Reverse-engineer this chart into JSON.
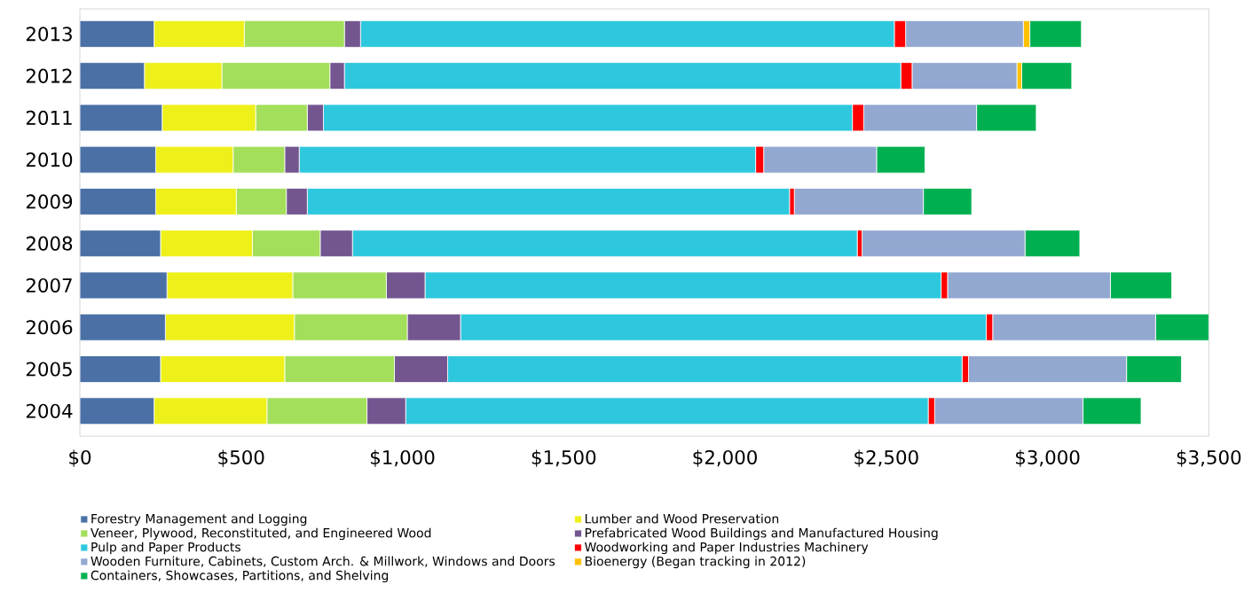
{
  "chart_data": {
    "type": "bar",
    "orientation": "horizontal",
    "stacked": true,
    "categories": [
      "2013",
      "2012",
      "2011",
      "2010",
      "2009",
      "2008",
      "2007",
      "2006",
      "2005",
      "2004"
    ],
    "series": [
      {
        "name": "Forestry Management and Logging",
        "color": "#4a70a6",
        "values": [
          230,
          200,
          255,
          235,
          235,
          250,
          270,
          265,
          250,
          230
        ]
      },
      {
        "name": "Lumber and Wood Preservation",
        "color": "#eef01a",
        "values": [
          280,
          240,
          290,
          240,
          250,
          285,
          390,
          400,
          385,
          350
        ]
      },
      {
        "name": "Veneer, Plywood, Reconstituted, and Engineered Wood",
        "color": "#a3df5a",
        "values": [
          310,
          335,
          160,
          160,
          155,
          210,
          290,
          350,
          340,
          310
        ]
      },
      {
        "name": "Prefabricated Wood Buildings and Manufactured Housing",
        "color": "#735690",
        "values": [
          50,
          45,
          50,
          45,
          65,
          100,
          120,
          165,
          165,
          120
        ]
      },
      {
        "name": "Pulp and Paper Products",
        "color": "#2ec8de",
        "values": [
          1655,
          1725,
          1640,
          1415,
          1495,
          1565,
          1600,
          1630,
          1595,
          1620
        ]
      },
      {
        "name": "Woodworking and Paper Industries Machinery",
        "color": "#ff0000",
        "values": [
          35,
          35,
          35,
          25,
          15,
          15,
          20,
          20,
          20,
          20
        ]
      },
      {
        "name": "Wooden Furniture, Cabinets, Custom Arch. & Millwork, Windows and Doors",
        "color": "#92a8d1",
        "values": [
          365,
          325,
          350,
          350,
          400,
          505,
          505,
          505,
          490,
          460
        ]
      },
      {
        "name": "Bioenergy (Began tracking in 2012)",
        "color": "#ffc000",
        "values": [
          20,
          15,
          null,
          null,
          null,
          null,
          null,
          null,
          null,
          null
        ]
      },
      {
        "name": "Containers, Showcases, Partitions, and Shelving",
        "color": "#00b050",
        "values": [
          160,
          155,
          185,
          150,
          150,
          170,
          190,
          165,
          170,
          180
        ]
      }
    ],
    "xlim": [
      0,
      3500
    ],
    "xticks": [
      {
        "value": 0,
        "label": "$0"
      },
      {
        "value": 500,
        "label": "$500"
      },
      {
        "value": 1000,
        "label": "$1,000"
      },
      {
        "value": 1500,
        "label": "$1,500"
      },
      {
        "value": 2000,
        "label": "$2,000"
      },
      {
        "value": 2500,
        "label": "$2,500"
      },
      {
        "value": 3000,
        "label": "$3,000"
      },
      {
        "value": 3500,
        "label": "$3,500"
      }
    ],
    "grid": false,
    "legend": "bottom"
  }
}
